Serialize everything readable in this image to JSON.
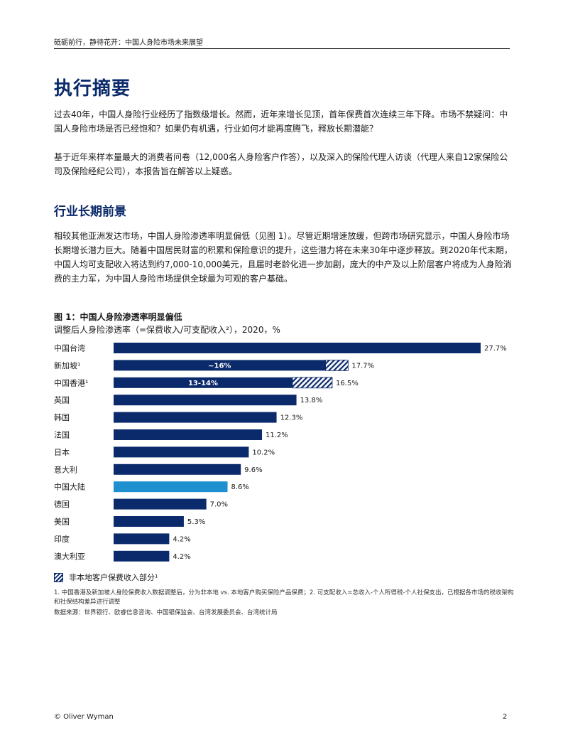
{
  "header": {
    "running_title": "砥砺前行，静待花开：中国人身险市场未来展望"
  },
  "title": "执行摘要",
  "intro": {
    "p1": "过去40年，中国人身险行业经历了指数级增长。然而，近年来增长见顶，首年保费首次连续三年下降。市场不禁疑问：中国人身险市场是否已经饱和？如果仍有机遇，行业如何才能再度腾飞，释放长期潜能？",
    "p2": "基于近年来样本量最大的消费者问卷（12,000名人身险客户作答），以及深入的保险代理人访谈（代理人来自12家保险公司及保险经纪公司），本报告旨在解答以上疑惑。"
  },
  "section": {
    "title": "行业长期前景",
    "p1": "相较其他亚洲发达市场，中国人身险渗透率明显偏低（见图 1）。尽管近期增速放缓，但跨市场研究显示，中国人身险市场长期增长潜力巨大。随着中国居民财富的积累和保险意识的提升，这些潜力将在未来30年中逐步释放。到2020年代末期，中国人均可支配收入将达到约7,000-10,000美元，且届时老龄化进一步加剧，庞大的中产及以上阶层客户将成为人身险消费的主力军，为中国人身险市场提供全球最为可观的客户基础。"
  },
  "figure": {
    "title": "图 1：中国人身险渗透率明显偏低",
    "subtitle": "调整后人身险渗透率（=保费收入/可支配收入²），2020，%",
    "legend": "非本地客户保费收入部分¹"
  },
  "chart_data": {
    "type": "bar",
    "orientation": "horizontal",
    "unit": "%",
    "xlim": [
      0,
      27.7
    ],
    "colors": {
      "primary": "#0b2a6b",
      "highlight": "#1e90d0",
      "hatch": "#0b2a6b"
    },
    "categories": [
      "中国台湾",
      "新加坡¹",
      "中国香港¹",
      "英国",
      "韩国",
      "法国",
      "日本",
      "意大利",
      "中国大陆",
      "德国",
      "美国",
      "印度",
      "澳大利亚"
    ],
    "values": [
      27.7,
      17.7,
      16.5,
      13.8,
      12.3,
      11.2,
      10.2,
      9.6,
      8.6,
      7.0,
      5.3,
      4.2,
      4.2
    ],
    "value_labels": [
      "27.7%",
      "17.7%",
      "16.5%",
      "13.8%",
      "12.3%",
      "11.2%",
      "10.2%",
      "9.6%",
      "8.6%",
      "7.0%",
      "5.3%",
      "4.2%",
      "4.2%"
    ],
    "local_portion": [
      null,
      16,
      13.5,
      null,
      null,
      null,
      null,
      null,
      null,
      null,
      null,
      null,
      null
    ],
    "local_portion_labels": [
      null,
      "~16%",
      "13-14%",
      null,
      null,
      null,
      null,
      null,
      null,
      null,
      null,
      null,
      null
    ],
    "highlight_index": 8
  },
  "footnotes": {
    "note1": "1. 中国香港及新加坡人身险保费收入数据调整后，分为非本地 vs. 本地客户购买保险产品保费；2. 可支配收入=总收入-个人所得税-个人社保支出，已根据各市场的税收架构和社保结构差异进行调整",
    "source": "数据来源：世界银行、欧睿信息咨询、中国银保监会、台湾发展委员会、台湾统计局"
  },
  "footer": {
    "copyright": "© Oliver Wyman",
    "page_number": "2"
  }
}
